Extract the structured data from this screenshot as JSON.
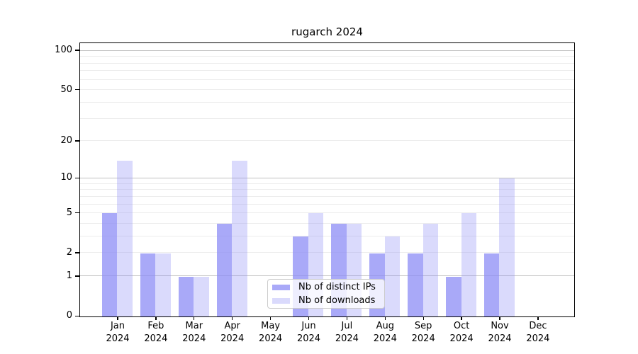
{
  "chart_data": {
    "type": "bar",
    "title": "rugarch 2024",
    "categories": [
      "Jan",
      "Feb",
      "Mar",
      "Apr",
      "May",
      "Jun",
      "Jul",
      "Aug",
      "Sep",
      "Oct",
      "Nov",
      "Dec"
    ],
    "year_label": "2024",
    "series": [
      {
        "name": "Nb of distinct IPs",
        "color": "rgba(140,140,245,0.75)",
        "values": [
          5,
          2,
          1,
          4,
          0,
          3,
          4,
          2,
          2,
          1,
          2,
          0
        ]
      },
      {
        "name": "Nb of downloads",
        "color": "rgba(140,140,245,0.32)",
        "values": [
          14,
          2,
          1,
          14,
          0,
          5,
          4,
          3,
          4,
          5,
          10,
          0
        ]
      }
    ],
    "y_axis": {
      "scale": "log1p",
      "tick_values": [
        0,
        1,
        2,
        5,
        10,
        20,
        50,
        100
      ],
      "minor_grid_values": [
        2,
        3,
        4,
        5,
        6,
        7,
        8,
        9,
        20,
        30,
        40,
        50,
        60,
        70,
        80,
        90
      ],
      "major_grid_values": [
        1,
        10,
        100
      ]
    },
    "legend_position": "bottom-center",
    "grid": "horizontal",
    "colors": {
      "bar_dark": "rgba(140,140,245,0.75)",
      "bar_light": "rgba(140,140,245,0.32)",
      "grid_major": "#c0c0c0",
      "grid_minor": "#ececec",
      "axis": "#000000",
      "legend_border": "#cccccc"
    }
  }
}
